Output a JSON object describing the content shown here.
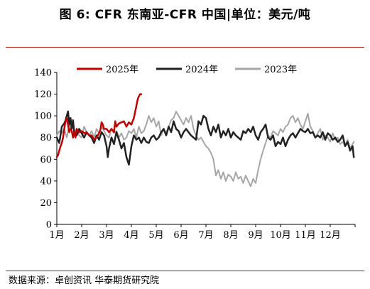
{
  "title": "图 6: CFR 东南亚-CFR 中国|单位：美元/吨",
  "source": "数据来源：卓创资讯 华泰期货研究院",
  "colors": {
    "rule": "#b01818",
    "axis": "#000000"
  },
  "chart_data": {
    "type": "line",
    "title": "",
    "xlabel": "",
    "ylabel": "",
    "ylim": [
      0,
      140
    ],
    "yticks": [
      0,
      20,
      40,
      60,
      80,
      100,
      120,
      140
    ],
    "x_domain": [
      1,
      13
    ],
    "months": [
      "1月",
      "2月",
      "3月",
      "4月",
      "5月",
      "6月",
      "7月",
      "8月",
      "9月",
      "10月",
      "11月",
      "12月"
    ],
    "legend_position": "top-center",
    "grid": false,
    "series": [
      {
        "name": "2025年",
        "color": "#c00000",
        "width": 2.5,
        "x": [
          1.0,
          1.05,
          1.1,
          1.15,
          1.2,
          1.25,
          1.3,
          1.35,
          1.4,
          1.45,
          1.5,
          1.55,
          1.6,
          1.65,
          1.7,
          1.75,
          1.8,
          1.9,
          2.0,
          2.1,
          2.2,
          2.3,
          2.4,
          2.5,
          2.6,
          2.7,
          2.75,
          2.8,
          2.85,
          2.9,
          3.0,
          3.1,
          3.2,
          3.3,
          3.35,
          3.4,
          3.5,
          3.6,
          3.7,
          3.8,
          3.9,
          4.0,
          4.1,
          4.2,
          4.25,
          4.3,
          4.35,
          4.4
        ],
        "y": [
          62,
          64,
          68,
          72,
          75,
          80,
          88,
          95,
          98,
          92,
          85,
          88,
          86,
          80,
          85,
          80,
          88,
          85,
          86,
          84,
          85,
          82,
          82,
          78,
          80,
          84,
          87,
          94,
          92,
          88,
          88,
          85,
          88,
          85,
          95,
          90,
          93,
          94,
          95,
          90,
          94,
          92,
          98,
          109,
          115,
          118,
          120,
          120
        ]
      },
      {
        "name": "2024年",
        "color": "#222222",
        "width": 2.5,
        "x": [
          1.0,
          1.1,
          1.2,
          1.3,
          1.35,
          1.4,
          1.45,
          1.5,
          1.55,
          1.6,
          1.65,
          1.7,
          1.8,
          1.9,
          2.0,
          2.1,
          2.2,
          2.3,
          2.4,
          2.5,
          2.6,
          2.7,
          2.8,
          2.9,
          3.0,
          3.05,
          3.1,
          3.2,
          3.3,
          3.4,
          3.5,
          3.6,
          3.7,
          3.8,
          3.9,
          4.0,
          4.1,
          4.2,
          4.3,
          4.4,
          4.5,
          4.6,
          4.7,
          4.8,
          4.9,
          5.0,
          5.1,
          5.2,
          5.3,
          5.4,
          5.5,
          5.6,
          5.7,
          5.8,
          5.9,
          6.0,
          6.1,
          6.2,
          6.3,
          6.4,
          6.5,
          6.6,
          6.7,
          6.8,
          6.9,
          7.0,
          7.1,
          7.2,
          7.3,
          7.4,
          7.5,
          7.6,
          7.7,
          7.8,
          7.9,
          8.0,
          8.1,
          8.2,
          8.3,
          8.4,
          8.5,
          8.6,
          8.7,
          8.8,
          8.9,
          9.0,
          9.1,
          9.2,
          9.3,
          9.4,
          9.5,
          9.6,
          9.7,
          9.8,
          9.9,
          10.0,
          10.1,
          10.2,
          10.3,
          10.4,
          10.5,
          10.6,
          10.7,
          10.8,
          10.9,
          11.0,
          11.1,
          11.2,
          11.3,
          11.4,
          11.5,
          11.6,
          11.7,
          11.8,
          11.9,
          12.0,
          12.1,
          12.2,
          12.3,
          12.4,
          12.5,
          12.6,
          12.7,
          12.8,
          12.9,
          12.95
        ],
        "y": [
          80,
          75,
          90,
          93,
          96,
          100,
          104,
          92,
          98,
          88,
          96,
          85,
          82,
          88,
          84,
          80,
          85,
          82,
          80,
          75,
          82,
          78,
          85,
          82,
          72,
          62,
          70,
          80,
          74,
          85,
          78,
          70,
          75,
          62,
          55,
          72,
          82,
          78,
          80,
          75,
          80,
          76,
          75,
          80,
          82,
          78,
          80,
          85,
          88,
          82,
          90,
          85,
          95,
          88,
          86,
          80,
          85,
          88,
          85,
          82,
          80,
          78,
          95,
          92,
          100,
          98,
          88,
          82,
          90,
          85,
          92,
          80,
          86,
          82,
          88,
          80,
          85,
          82,
          80,
          78,
          86,
          84,
          88,
          85,
          90,
          82,
          78,
          85,
          88,
          92,
          80,
          78,
          82,
          72,
          76,
          74,
          80,
          72,
          78,
          82,
          84,
          80,
          84,
          88,
          86,
          85,
          88,
          84,
          85,
          80,
          82,
          80,
          85,
          78,
          84,
          82,
          78,
          80,
          76,
          78,
          82,
          72,
          76,
          68,
          72,
          62
        ],
        "tail_note": "ends near 67"
      },
      {
        "name": "2023年",
        "color": "#a6a6a6",
        "width": 2,
        "x": [
          1.0,
          1.1,
          1.2,
          1.3,
          1.4,
          1.5,
          1.6,
          1.7,
          1.8,
          1.9,
          2.0,
          2.1,
          2.2,
          2.3,
          2.4,
          2.5,
          2.6,
          2.7,
          2.8,
          2.9,
          3.0,
          3.1,
          3.2,
          3.3,
          3.4,
          3.5,
          3.6,
          3.7,
          3.8,
          3.9,
          4.0,
          4.1,
          4.2,
          4.3,
          4.4,
          4.5,
          4.6,
          4.7,
          4.8,
          4.9,
          5.0,
          5.1,
          5.2,
          5.3,
          5.4,
          5.5,
          5.6,
          5.7,
          5.8,
          5.9,
          6.0,
          6.1,
          6.2,
          6.3,
          6.4,
          6.5,
          6.6,
          6.7,
          6.8,
          6.9,
          7.0,
          7.1,
          7.2,
          7.3,
          7.4,
          7.5,
          7.6,
          7.7,
          7.8,
          7.9,
          8.0,
          8.1,
          8.2,
          8.3,
          8.4,
          8.5,
          8.6,
          8.7,
          8.8,
          8.9,
          9.0,
          9.1,
          9.2,
          9.3,
          9.4,
          9.5,
          9.6,
          9.7,
          9.8,
          9.9,
          10.0,
          10.1,
          10.2,
          10.3,
          10.4,
          10.5,
          10.6,
          10.7,
          10.8,
          10.9,
          11.0,
          11.1,
          11.2,
          11.3,
          11.4,
          11.5,
          11.6,
          11.7,
          11.8,
          11.9,
          12.0,
          12.1,
          12.2,
          12.3,
          12.4,
          12.5,
          12.6,
          12.7,
          12.8,
          12.9,
          12.95
        ],
        "y": [
          82,
          86,
          84,
          88,
          80,
          92,
          86,
          84,
          88,
          82,
          80,
          90,
          85,
          82,
          86,
          80,
          88,
          84,
          90,
          86,
          82,
          80,
          88,
          84,
          86,
          80,
          84,
          78,
          80,
          86,
          84,
          88,
          80,
          90,
          84,
          86,
          92,
          100,
          94,
          98,
          90,
          95,
          82,
          88,
          84,
          90,
          96,
          98,
          104,
          100,
          96,
          92,
          98,
          94,
          100,
          88,
          82,
          78,
          80,
          76,
          72,
          70,
          66,
          60,
          45,
          50,
          42,
          48,
          40,
          46,
          44,
          40,
          48,
          42,
          44,
          38,
          45,
          40,
          35,
          42,
          38,
          50,
          60,
          68,
          75,
          82,
          80,
          86,
          84,
          82,
          88,
          85,
          90,
          92,
          98,
          100,
          94,
          98,
          92,
          88,
          95,
          102,
          90,
          86,
          80,
          84,
          88,
          78,
          82,
          80,
          76,
          84,
          78,
          80,
          74,
          76,
          72,
          78,
          70,
          74,
          76
        ]
      }
    ]
  }
}
